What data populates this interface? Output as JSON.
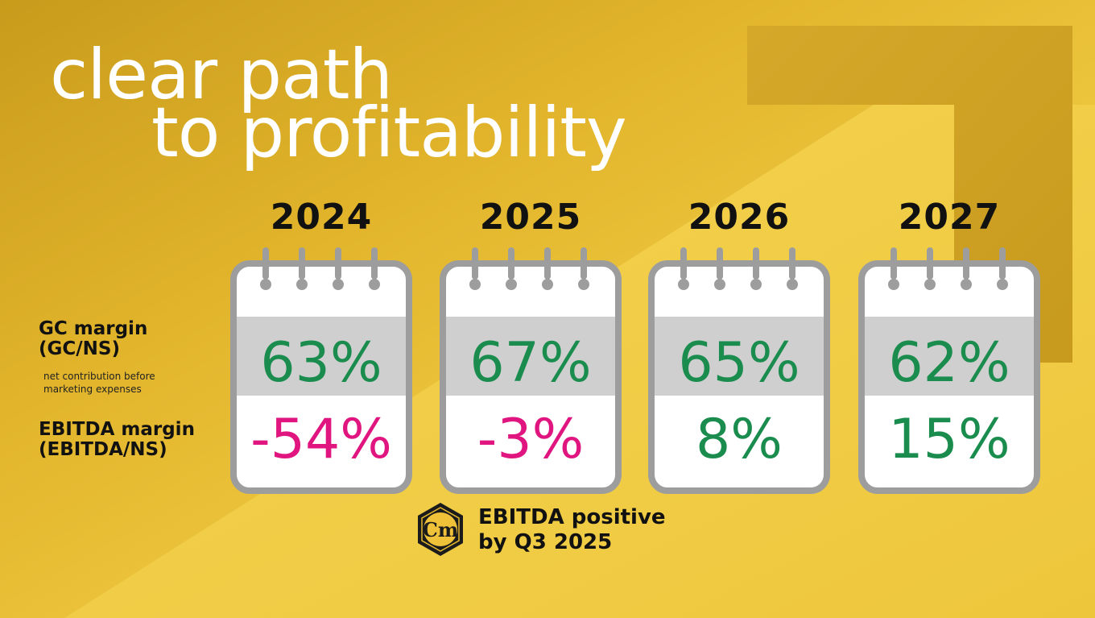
{
  "title": {
    "line1": "clear path",
    "line2": "to profitability"
  },
  "row_labels": {
    "gc": "GC margin\n(GC/NS)",
    "gc_note": "net contribution before\nmarketing expenses",
    "ebitda": "EBITDA margin\n(EBITDA/NS)"
  },
  "years": [
    {
      "year": "2024",
      "gc": "63%",
      "ebitda": "-54%",
      "ebitda_color": "#e0157f"
    },
    {
      "year": "2025",
      "gc": "67%",
      "ebitda": "-3%",
      "ebitda_color": "#e0157f"
    },
    {
      "year": "2026",
      "gc": "65%",
      "ebitda": "8%",
      "ebitda_color": "#1a8c4e"
    },
    {
      "year": "2027",
      "gc": "62%",
      "ebitda": "15%",
      "ebitda_color": "#1a8c4e"
    }
  ],
  "footnote": "EBITDA positive\nby Q3 2025",
  "logo": {
    "text": "Cm"
  },
  "colors": {
    "positive": "#1a8c4e",
    "negative": "#e0157f",
    "background": "#e6b62a",
    "calendar_frame": "#9d9d9d",
    "calendar_band": "#cfcfcf"
  }
}
